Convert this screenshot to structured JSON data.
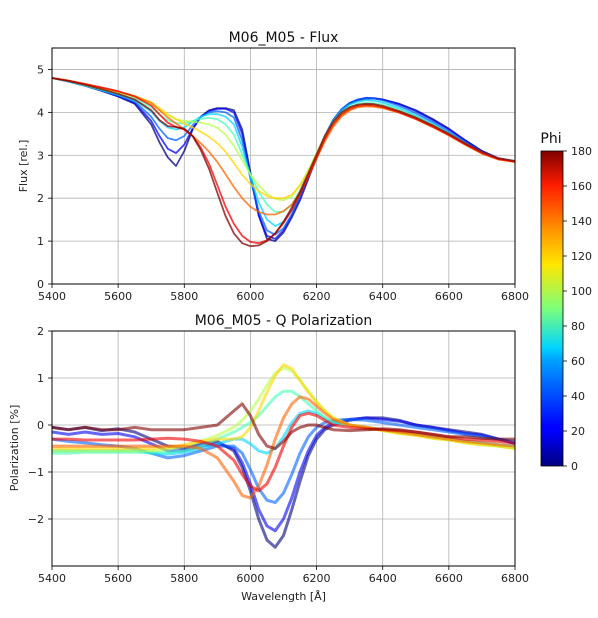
{
  "chart_data": [
    {
      "type": "line",
      "title": "M06_M05 - Flux",
      "xlabel": "",
      "ylabel": "Flux [rel.]",
      "xlim": [
        5400,
        6800
      ],
      "ylim": [
        0,
        5.5
      ],
      "xticks": [
        "5400",
        "5600",
        "5800",
        "6000",
        "6200",
        "6400",
        "6600",
        "6800"
      ],
      "yticks": [
        "0",
        "1",
        "2",
        "3",
        "4",
        "5"
      ],
      "grid": true,
      "x": [
        5400,
        5450,
        5500,
        5550,
        5600,
        5650,
        5700,
        5725,
        5750,
        5775,
        5800,
        5825,
        5850,
        5875,
        5900,
        5925,
        5950,
        5975,
        6000,
        6025,
        6050,
        6075,
        6100,
        6125,
        6150,
        6175,
        6200,
        6225,
        6250,
        6275,
        6300,
        6325,
        6350,
        6375,
        6400,
        6450,
        6500,
        6550,
        6600,
        6650,
        6700,
        6750,
        6800
      ],
      "series": [
        {
          "phi": 0,
          "values": [
            4.8,
            4.72,
            4.62,
            4.5,
            4.37,
            4.2,
            3.72,
            3.3,
            2.95,
            2.75,
            3.1,
            3.6,
            3.9,
            4.05,
            4.1,
            4.1,
            4.05,
            3.6,
            2.6,
            1.6,
            1.05,
            1.0,
            1.2,
            1.55,
            1.95,
            2.45,
            2.95,
            3.4,
            3.8,
            4.05,
            4.2,
            4.28,
            4.32,
            4.32,
            4.3,
            4.2,
            4.05,
            3.85,
            3.62,
            3.35,
            3.1,
            2.92,
            2.85
          ]
        },
        {
          "phi": 20,
          "values": [
            4.8,
            4.72,
            4.62,
            4.51,
            4.38,
            4.22,
            3.8,
            3.45,
            3.15,
            3.05,
            3.25,
            3.62,
            3.9,
            4.03,
            4.08,
            4.08,
            4.0,
            3.5,
            2.5,
            1.6,
            1.12,
            1.05,
            1.25,
            1.6,
            2.0,
            2.5,
            3.0,
            3.45,
            3.82,
            4.07,
            4.22,
            4.3,
            4.34,
            4.33,
            4.3,
            4.19,
            4.03,
            3.83,
            3.6,
            3.34,
            3.1,
            2.93,
            2.86
          ]
        },
        {
          "phi": 40,
          "values": [
            4.8,
            4.72,
            4.62,
            4.51,
            4.39,
            4.25,
            3.9,
            3.62,
            3.4,
            3.35,
            3.45,
            3.7,
            3.9,
            4.0,
            4.03,
            4.0,
            3.88,
            3.35,
            2.45,
            1.7,
            1.25,
            1.15,
            1.3,
            1.62,
            2.02,
            2.52,
            3.0,
            3.45,
            3.82,
            4.07,
            4.22,
            4.3,
            4.33,
            4.32,
            4.28,
            4.15,
            3.98,
            3.78,
            3.55,
            3.3,
            3.08,
            2.92,
            2.86
          ]
        },
        {
          "phi": 60,
          "values": [
            4.8,
            4.72,
            4.62,
            4.52,
            4.41,
            4.28,
            4.02,
            3.8,
            3.65,
            3.6,
            3.65,
            3.78,
            3.9,
            3.96,
            3.96,
            3.9,
            3.72,
            3.2,
            2.5,
            1.9,
            1.5,
            1.35,
            1.45,
            1.72,
            2.1,
            2.55,
            3.02,
            3.45,
            3.8,
            4.04,
            4.18,
            4.25,
            4.28,
            4.27,
            4.23,
            4.1,
            3.93,
            3.74,
            3.52,
            3.28,
            3.07,
            2.92,
            2.86
          ]
        },
        {
          "phi": 80,
          "values": [
            4.8,
            4.73,
            4.63,
            4.53,
            4.43,
            4.32,
            4.12,
            3.95,
            3.82,
            3.75,
            3.74,
            3.8,
            3.85,
            3.87,
            3.84,
            3.72,
            3.48,
            3.02,
            2.55,
            2.15,
            1.85,
            1.68,
            1.68,
            1.85,
            2.18,
            2.6,
            3.04,
            3.45,
            3.78,
            4.0,
            4.13,
            4.2,
            4.22,
            4.21,
            4.18,
            4.06,
            3.9,
            3.71,
            3.5,
            3.27,
            3.06,
            2.92,
            2.86
          ]
        },
        {
          "phi": 100,
          "values": [
            4.8,
            4.73,
            4.64,
            4.55,
            4.46,
            4.36,
            4.2,
            4.06,
            3.93,
            3.84,
            3.8,
            3.78,
            3.76,
            3.72,
            3.64,
            3.48,
            3.22,
            2.88,
            2.55,
            2.3,
            2.1,
            1.98,
            1.95,
            2.04,
            2.3,
            2.65,
            3.05,
            3.43,
            3.74,
            3.96,
            4.09,
            4.16,
            4.18,
            4.17,
            4.14,
            4.03,
            3.87,
            3.69,
            3.48,
            3.26,
            3.06,
            2.91,
            2.85
          ]
        },
        {
          "phi": 120,
          "values": [
            4.8,
            4.74,
            4.65,
            4.57,
            4.48,
            4.38,
            4.24,
            4.1,
            3.96,
            3.84,
            3.74,
            3.65,
            3.55,
            3.43,
            3.28,
            3.08,
            2.82,
            2.55,
            2.33,
            2.17,
            2.05,
            2.0,
            2.0,
            2.08,
            2.3,
            2.62,
            3.0,
            3.38,
            3.7,
            3.93,
            4.06,
            4.13,
            4.15,
            4.14,
            4.11,
            4.0,
            3.85,
            3.67,
            3.47,
            3.25,
            3.05,
            2.91,
            2.85
          ]
        },
        {
          "phi": 140,
          "values": [
            4.8,
            4.74,
            4.66,
            4.58,
            4.49,
            4.38,
            4.22,
            4.05,
            3.88,
            3.74,
            3.6,
            3.45,
            3.28,
            3.08,
            2.84,
            2.56,
            2.26,
            2.0,
            1.8,
            1.68,
            1.62,
            1.62,
            1.7,
            1.85,
            2.12,
            2.5,
            2.92,
            3.32,
            3.66,
            3.9,
            4.04,
            4.12,
            4.14,
            4.13,
            4.1,
            3.99,
            3.84,
            3.66,
            3.46,
            3.24,
            3.04,
            2.9,
            2.84
          ]
        },
        {
          "phi": 160,
          "values": [
            4.8,
            4.74,
            4.66,
            4.58,
            4.49,
            4.37,
            4.16,
            3.95,
            3.76,
            3.66,
            3.6,
            3.45,
            3.18,
            2.8,
            2.3,
            1.8,
            1.4,
            1.12,
            0.98,
            0.95,
            1.02,
            1.18,
            1.42,
            1.72,
            2.08,
            2.5,
            2.95,
            3.38,
            3.72,
            3.95,
            4.08,
            4.15,
            4.17,
            4.16,
            4.12,
            4.0,
            3.85,
            3.67,
            3.47,
            3.25,
            3.05,
            2.91,
            2.85
          ]
        },
        {
          "phi": 180,
          "values": [
            4.8,
            4.73,
            4.64,
            4.54,
            4.43,
            4.3,
            4.05,
            3.82,
            3.68,
            3.66,
            3.62,
            3.45,
            3.12,
            2.68,
            2.12,
            1.58,
            1.18,
            0.95,
            0.88,
            0.9,
            1.0,
            1.18,
            1.45,
            1.78,
            2.15,
            2.58,
            3.02,
            3.45,
            3.78,
            4.0,
            4.12,
            4.18,
            4.2,
            4.19,
            4.15,
            4.03,
            3.88,
            3.7,
            3.5,
            3.28,
            3.08,
            2.93,
            2.87
          ]
        }
      ]
    },
    {
      "type": "line",
      "title": "M06_M05 - Q Polarization",
      "xlabel": "Wavelength [Å]",
      "ylabel": "Polarization [%]",
      "xlim": [
        5400,
        6800
      ],
      "ylim": [
        -3,
        2
      ],
      "xticks": [
        "5400",
        "5600",
        "5800",
        "6000",
        "6200",
        "6400",
        "6600",
        "6800"
      ],
      "yticks": [
        "−2",
        "−1",
        "0",
        "1",
        "2"
      ],
      "grid": true,
      "x": [
        5400,
        5450,
        5500,
        5550,
        5600,
        5650,
        5700,
        5750,
        5800,
        5850,
        5900,
        5950,
        5975,
        6000,
        6025,
        6050,
        6075,
        6100,
        6125,
        6150,
        6175,
        6200,
        6225,
        6250,
        6300,
        6350,
        6400,
        6450,
        6500,
        6550,
        6600,
        6650,
        6700,
        6750,
        6800
      ],
      "series": [
        {
          "phi": 0,
          "values": [
            -0.05,
            -0.1,
            -0.05,
            -0.12,
            -0.08,
            -0.15,
            -0.3,
            -0.45,
            -0.5,
            -0.4,
            -0.35,
            -0.55,
            -0.9,
            -1.4,
            -2.0,
            -2.45,
            -2.6,
            -2.35,
            -1.8,
            -1.2,
            -0.65,
            -0.3,
            -0.1,
            0.0,
            0.1,
            0.15,
            0.15,
            0.1,
            0.0,
            -0.05,
            -0.1,
            -0.15,
            -0.2,
            -0.3,
            -0.4
          ]
        },
        {
          "phi": 20,
          "values": [
            -0.15,
            -0.2,
            -0.15,
            -0.2,
            -0.18,
            -0.25,
            -0.4,
            -0.55,
            -0.55,
            -0.45,
            -0.4,
            -0.5,
            -0.8,
            -1.25,
            -1.8,
            -2.15,
            -2.25,
            -2.0,
            -1.55,
            -1.0,
            -0.55,
            -0.22,
            -0.05,
            0.05,
            0.12,
            0.15,
            0.12,
            0.08,
            0.0,
            -0.05,
            -0.12,
            -0.18,
            -0.22,
            -0.3,
            -0.38
          ]
        },
        {
          "phi": 40,
          "values": [
            -0.3,
            -0.35,
            -0.38,
            -0.42,
            -0.45,
            -0.5,
            -0.6,
            -0.7,
            -0.65,
            -0.55,
            -0.45,
            -0.45,
            -0.6,
            -0.95,
            -1.35,
            -1.6,
            -1.65,
            -1.45,
            -1.05,
            -0.6,
            -0.25,
            -0.05,
            0.05,
            0.1,
            0.12,
            0.1,
            0.05,
            0.0,
            -0.05,
            -0.1,
            -0.15,
            -0.2,
            -0.25,
            -0.3,
            -0.35
          ]
        },
        {
          "phi": 60,
          "values": [
            -0.55,
            -0.55,
            -0.55,
            -0.55,
            -0.55,
            -0.55,
            -0.6,
            -0.62,
            -0.58,
            -0.5,
            -0.4,
            -0.3,
            -0.3,
            -0.4,
            -0.55,
            -0.6,
            -0.5,
            -0.25,
            0.05,
            0.25,
            0.3,
            0.25,
            0.15,
            0.05,
            0.0,
            -0.05,
            -0.1,
            -0.15,
            -0.2,
            -0.25,
            -0.3,
            -0.35,
            -0.38,
            -0.42,
            -0.45
          ]
        },
        {
          "phi": 80,
          "values": [
            -0.6,
            -0.6,
            -0.58,
            -0.58,
            -0.58,
            -0.58,
            -0.58,
            -0.58,
            -0.55,
            -0.45,
            -0.3,
            -0.15,
            -0.05,
            0.05,
            0.2,
            0.4,
            0.6,
            0.72,
            0.72,
            0.6,
            0.45,
            0.3,
            0.15,
            0.05,
            0.0,
            -0.05,
            -0.1,
            -0.15,
            -0.2,
            -0.25,
            -0.3,
            -0.35,
            -0.4,
            -0.45,
            -0.48
          ]
        },
        {
          "phi": 100,
          "values": [
            -0.55,
            -0.55,
            -0.55,
            -0.55,
            -0.55,
            -0.55,
            -0.55,
            -0.52,
            -0.45,
            -0.35,
            -0.22,
            -0.05,
            0.1,
            0.3,
            0.55,
            0.85,
            1.1,
            1.22,
            1.15,
            0.95,
            0.72,
            0.5,
            0.3,
            0.15,
            0.0,
            -0.05,
            -0.12,
            -0.18,
            -0.22,
            -0.28,
            -0.32,
            -0.38,
            -0.42,
            -0.45,
            -0.5
          ]
        },
        {
          "phi": 120,
          "values": [
            -0.5,
            -0.5,
            -0.5,
            -0.5,
            -0.5,
            -0.5,
            -0.5,
            -0.48,
            -0.42,
            -0.35,
            -0.3,
            -0.3,
            -0.25,
            -0.05,
            0.3,
            0.7,
            1.05,
            1.28,
            1.2,
            0.95,
            0.7,
            0.48,
            0.3,
            0.15,
            0.0,
            -0.05,
            -0.12,
            -0.18,
            -0.22,
            -0.28,
            -0.32,
            -0.38,
            -0.42,
            -0.45,
            -0.5
          ]
        },
        {
          "phi": 140,
          "values": [
            -0.45,
            -0.45,
            -0.45,
            -0.45,
            -0.45,
            -0.45,
            -0.45,
            -0.45,
            -0.45,
            -0.5,
            -0.7,
            -1.2,
            -1.5,
            -1.55,
            -1.3,
            -0.85,
            -0.3,
            0.15,
            0.45,
            0.6,
            0.55,
            0.4,
            0.25,
            0.12,
            0.0,
            -0.05,
            -0.1,
            -0.15,
            -0.2,
            -0.25,
            -0.3,
            -0.35,
            -0.38,
            -0.42,
            -0.45
          ]
        },
        {
          "phi": 160,
          "values": [
            -0.3,
            -0.3,
            -0.32,
            -0.32,
            -0.32,
            -0.32,
            -0.3,
            -0.28,
            -0.3,
            -0.35,
            -0.45,
            -0.75,
            -1.05,
            -1.3,
            -1.4,
            -1.25,
            -0.9,
            -0.45,
            -0.05,
            0.2,
            0.25,
            0.2,
            0.1,
            0.0,
            -0.05,
            -0.08,
            -0.1,
            -0.12,
            -0.15,
            -0.2,
            -0.25,
            -0.3,
            -0.32,
            -0.35,
            -0.38
          ]
        },
        {
          "phi": 180,
          "values": [
            -0.05,
            -0.1,
            -0.05,
            -0.1,
            -0.1,
            -0.05,
            -0.1,
            -0.1,
            -0.1,
            -0.05,
            0.0,
            0.3,
            0.45,
            0.2,
            -0.2,
            -0.45,
            -0.5,
            -0.35,
            -0.15,
            -0.05,
            0.0,
            0.0,
            -0.05,
            -0.1,
            -0.12,
            -0.1,
            -0.08,
            -0.1,
            -0.15,
            -0.2,
            -0.25,
            -0.25,
            -0.28,
            -0.3,
            -0.3
          ]
        }
      ]
    }
  ],
  "colorbar": {
    "title": "Phi",
    "min": 0,
    "max": 180,
    "ticks": [
      "0",
      "20",
      "40",
      "60",
      "80",
      "100",
      "120",
      "140",
      "160",
      "180"
    ],
    "colormap": "jet"
  }
}
